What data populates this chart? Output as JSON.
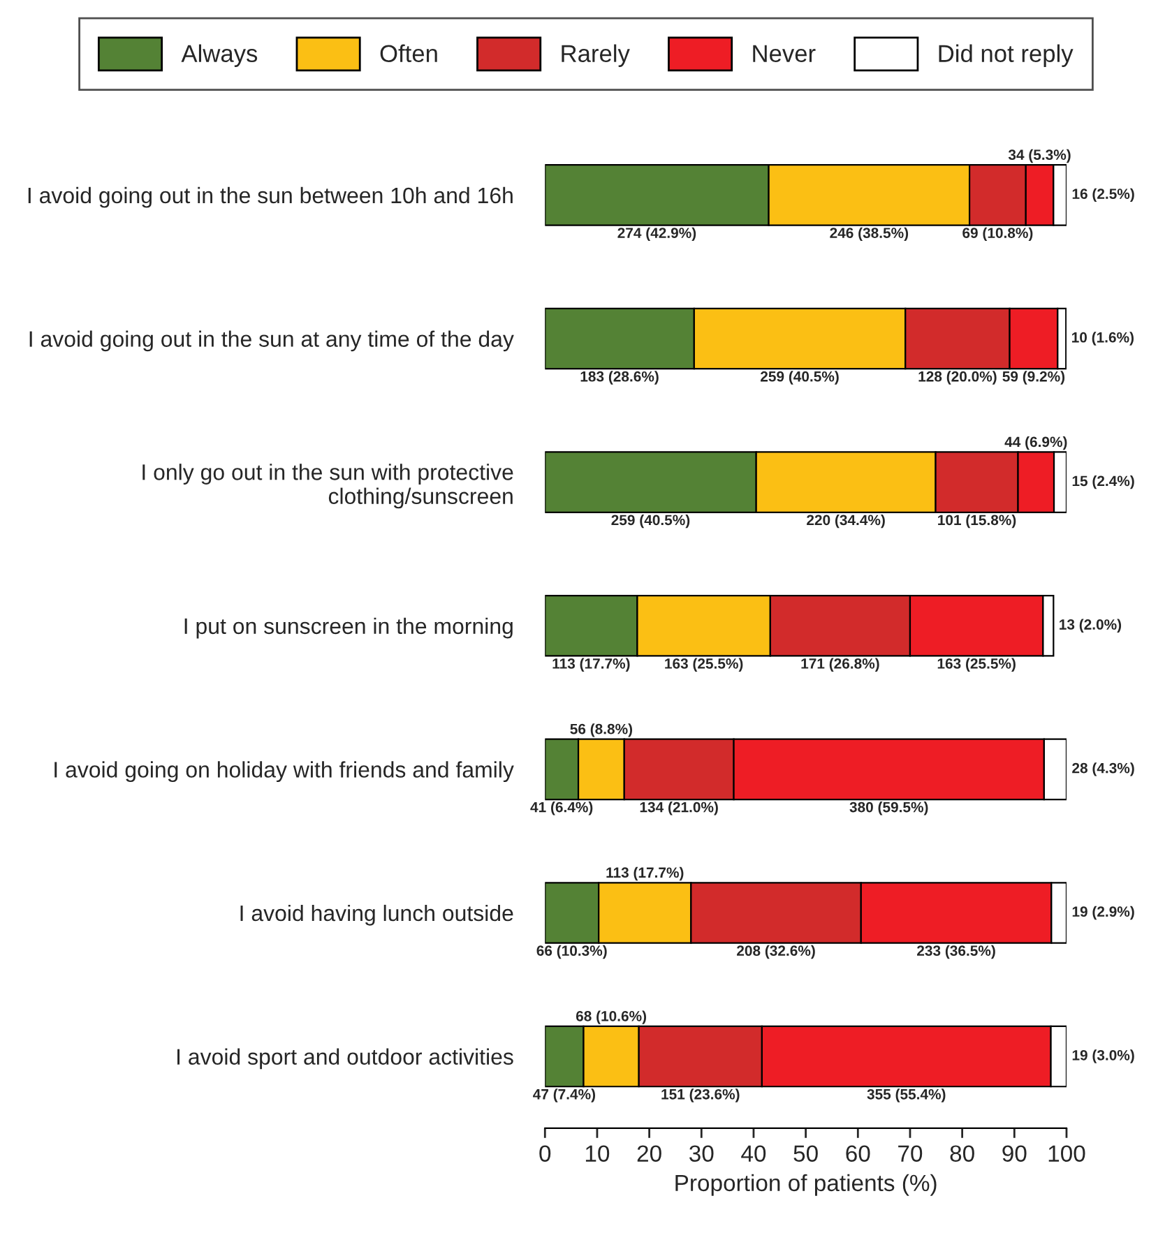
{
  "chart_data": {
    "type": "bar",
    "orientation": "horizontal",
    "stacked": true,
    "categories": [
      "I avoid going out in the sun between 10h and 16h",
      "I avoid going out in the sun at any time of the day",
      "I only go out in the sun with protective\nclothing/sunscreen",
      "I put on sunscreen in the morning",
      "I avoid going on holiday with friends and family",
      "I avoid having lunch outside",
      "I avoid sport and outdoor activities"
    ],
    "series": [
      {
        "name": "Always",
        "color": "#548235",
        "values": [
          42.9,
          28.6,
          40.5,
          17.7,
          6.4,
          10.3,
          7.4
        ],
        "value_labels": [
          "274 (42.9%)",
          "183 (28.6%)",
          "259 (40.5%)",
          "113 (17.7%)",
          "41 (6.4%)",
          "66 (10.3%)",
          "47 (7.4%)"
        ]
      },
      {
        "name": "Often",
        "color": "#fbbf14",
        "values": [
          38.5,
          40.5,
          34.4,
          25.5,
          8.8,
          17.7,
          10.6
        ],
        "value_labels": [
          "246 (38.5%)",
          "259 (40.5%)",
          "220 (34.4%)",
          "163 (25.5%)",
          "56 (8.8%)",
          "113 (17.7%)",
          "68 (10.6%)"
        ]
      },
      {
        "name": "Rarely",
        "color": "#d22b2b",
        "values": [
          10.8,
          20.0,
          15.8,
          26.8,
          21.0,
          32.6,
          23.6
        ],
        "value_labels": [
          "69 (10.8%)",
          "128 (20.0%)",
          "101 (15.8%)",
          "171 (26.8%)",
          "134 (21.0%)",
          "208 (32.6%)",
          "151 (23.6%)"
        ]
      },
      {
        "name": "Never",
        "color": "#ee1d25",
        "values": [
          5.3,
          9.2,
          6.9,
          25.5,
          59.5,
          36.5,
          55.4
        ],
        "value_labels": [
          "34 (5.3%)",
          "59 (9.2%)",
          "44 (6.9%)",
          "163 (25.5%)",
          "380 (59.5%)",
          "233 (36.5%)",
          "355 (55.4%)"
        ]
      },
      {
        "name": "Did not reply",
        "color": "#ffffff",
        "values": [
          2.5,
          1.6,
          2.4,
          2.0,
          4.3,
          2.9,
          3.0
        ],
        "value_labels": [
          "16 (2.5%)",
          "10 (1.6%)",
          "15 (2.4%)",
          "13 (2.0%)",
          "28 (4.3%)",
          "19 (2.9%)",
          "19 (3.0%)"
        ]
      }
    ],
    "xlabel": "Proportion of patients (%)",
    "xlim": [
      0,
      100
    ],
    "xticks": [
      0,
      10,
      20,
      30,
      40,
      50,
      60,
      70,
      80,
      90,
      100
    ],
    "legend": "top",
    "grid": false
  }
}
